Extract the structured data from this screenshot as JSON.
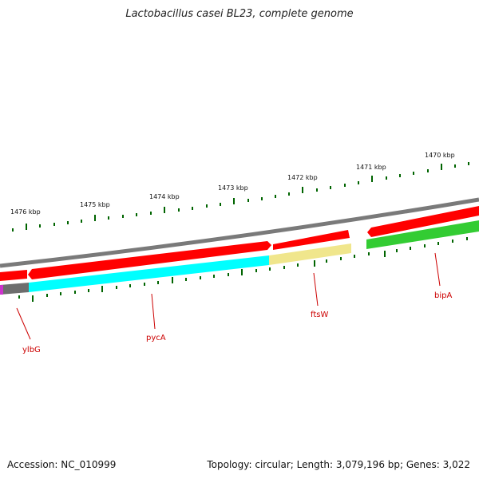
{
  "title": "Lactobacillus casei BL23, complete genome",
  "footer": {
    "accession": "Accession: NC_010999",
    "summary": "Topology: circular; Length: 3,079,196 bp; Genes: 3,022"
  },
  "kbp_labels": [
    "1476 kbp",
    "1475 kbp",
    "1474 kbp",
    "1473 kbp",
    "1472 kbp",
    "1471 kbp",
    "1470 kbp"
  ],
  "gene_labels": [
    "ylbG",
    "pycA",
    "ftsW",
    "bipA"
  ],
  "colors": {
    "backbone": "#808080",
    "cds_forward": "#ff0000",
    "cds_cyan": "#00ffff",
    "cds_pale": "#f0e68c",
    "cds_green": "#33cc33",
    "cds_grey": "#707070",
    "cds_magenta": "#cc33cc",
    "ticks": "#006400",
    "gene_label": "#cc0000"
  }
}
